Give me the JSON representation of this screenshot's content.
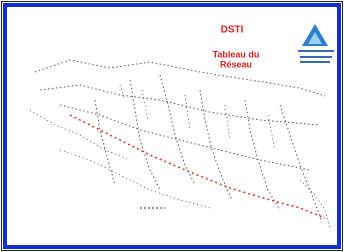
{
  "header": {
    "title": "DSTI",
    "subtitle_lines": [
      "Tableau du",
      "Réseau"
    ]
  }
}
